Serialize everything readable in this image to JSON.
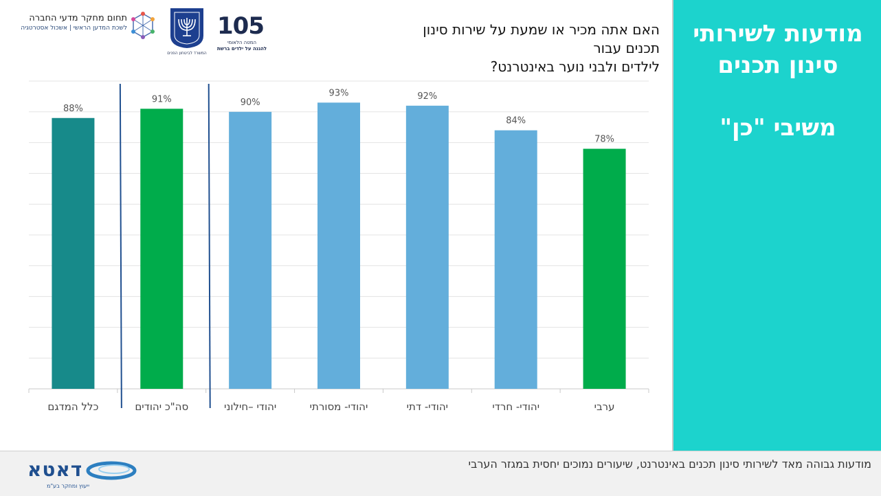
{
  "side_panel": {
    "title_line1": "מודעות לשירותי",
    "title_line2": "סינון תכנים",
    "subtitle": "משיבי \"כן\""
  },
  "question": {
    "line1": "האם אתה מכיר או שמעת על שירות סינון תכנים עבור",
    "line2": "לילדים ולבני נוער באינטרנט?"
  },
  "logos": {
    "research_line1": "תחום מחקר מדעי החברה",
    "research_line2": "לשכת המדען הראשי | אשכול אסטרטגיה",
    "ministry_caption": "המשרד לביטחון הפנים",
    "hotline_number": "105",
    "hotline_caption1": "המטה הלאומי",
    "hotline_caption2": "להגנה על ילדים ברשת",
    "company_name": "דאטא",
    "company_tagline": "ייעוץ ומחקר בע\"מ"
  },
  "footer": {
    "note": "מודעות גבוהה מאד לשירותי סינון תכנים באינטרנט, שיעורים נמוכים יחסית במגזר הערבי"
  },
  "colors": {
    "panel": "#1cd3cd",
    "bar_total": "#178a8a",
    "bar_green": "#00ac4b",
    "bar_blue": "#63aedb",
    "divider": "#1f4f8f"
  },
  "chart_data": {
    "type": "bar",
    "categories": [
      "כלל המדגם",
      "סה\"כ יהודים",
      "יהודי –חילוני",
      "יהודי- מסורתי",
      "יהודי- דתי",
      "יהודי- חרדי",
      "ערבי"
    ],
    "values": [
      88,
      91,
      90,
      93,
      92,
      84,
      78
    ],
    "value_labels": [
      "88%",
      "91%",
      "90%",
      "93%",
      "92%",
      "84%",
      "78%"
    ],
    "bar_colors": [
      "#178a8a",
      "#00ac4b",
      "#63aedb",
      "#63aedb",
      "#63aedb",
      "#63aedb",
      "#00ac4b"
    ],
    "ylim": [
      0,
      100
    ],
    "grid": true,
    "separators_after": [
      0,
      1
    ]
  }
}
